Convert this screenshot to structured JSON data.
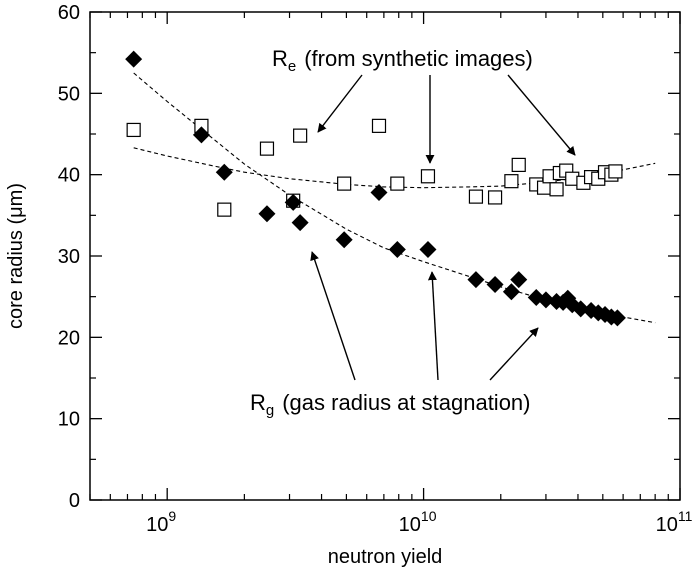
{
  "chart_data": {
    "type": "scatter",
    "xlabel": "neutron yield",
    "ylabel": "core radius   (μm)",
    "xscale": "log",
    "xlim": [
      500000000.0,
      100000000000.0
    ],
    "ylim": [
      0,
      60
    ],
    "x_tick_labels": [
      {
        "base": "10",
        "exp": "9",
        "value": 1000000000.0
      },
      {
        "base": "10",
        "exp": "10",
        "value": 10000000000.0
      },
      {
        "base": "10",
        "exp": "11",
        "value": 100000000000.0
      }
    ],
    "y_ticks": [
      0,
      10,
      20,
      30,
      40,
      50,
      60
    ],
    "grid": false,
    "legend": "none",
    "series": [
      {
        "name": "Re",
        "marker": "open-square",
        "x": [
          740000000.0,
          1360000000.0,
          1670000000.0,
          2450000000.0,
          3100000000.0,
          3300000000.0,
          4900000000.0,
          6700000000.0,
          7900000000.0,
          10400000000.0,
          16000000000.0,
          19000000000.0,
          22000000000.0,
          23500000000.0,
          27500000000.0,
          29500000000.0,
          31000000000.0,
          33000000000.0,
          34000000000.0,
          36000000000.0,
          38000000000.0,
          42000000000.0,
          45000000000.0,
          48000000000.0,
          51000000000.0,
          54000000000.0,
          56000000000.0
        ],
        "y": [
          45.5,
          46.0,
          35.7,
          43.2,
          36.8,
          44.8,
          38.9,
          46.0,
          38.9,
          39.8,
          37.3,
          37.2,
          39.2,
          41.2,
          38.8,
          38.4,
          39.8,
          38.2,
          40.2,
          40.5,
          39.5,
          39.0,
          39.7,
          39.5,
          40.3,
          40.0,
          40.4
        ]
      },
      {
        "name": "Rg",
        "marker": "filled-diamond",
        "x": [
          740000000.0,
          1360000000.0,
          1670000000.0,
          2450000000.0,
          3100000000.0,
          3300000000.0,
          4900000000.0,
          6700000000.0,
          7900000000.0,
          10400000000.0,
          16000000000.0,
          19000000000.0,
          22000000000.0,
          23500000000.0,
          27500000000.0,
          30000000000.0,
          33000000000.0,
          35000000000.0,
          36500000000.0,
          38000000000.0,
          41000000000.0,
          45000000000.0,
          48000000000.0,
          51000000000.0,
          54000000000.0,
          57000000000.0
        ],
        "y": [
          54.2,
          44.9,
          40.3,
          35.2,
          36.6,
          34.1,
          32.0,
          37.8,
          30.8,
          30.8,
          27.1,
          26.5,
          25.6,
          27.1,
          24.9,
          24.6,
          24.4,
          24.3,
          24.8,
          24.0,
          23.5,
          23.3,
          23.0,
          22.8,
          22.5,
          22.4
        ]
      }
    ],
    "fits": [
      {
        "series": "Re",
        "style": "dashed",
        "x": [
          740000000.0,
          1000000000.0,
          1500000000.0,
          2000000000.0,
          3000000000.0,
          5000000000.0,
          7000000000.0,
          10000000000.0,
          15000000000.0,
          20000000000.0,
          30000000000.0,
          40000000000.0,
          50000000000.0,
          60000000000.0,
          80000000000.0
        ],
        "y": [
          43.3,
          42.3,
          41.1,
          40.3,
          39.5,
          38.8,
          38.5,
          38.4,
          38.5,
          38.6,
          39.1,
          39.6,
          40.1,
          40.6,
          41.4
        ]
      },
      {
        "series": "Rg",
        "style": "dashed",
        "x": [
          740000000.0,
          1000000000.0,
          1500000000.0,
          2000000000.0,
          3000000000.0,
          5000000000.0,
          7000000000.0,
          10000000000.0,
          15000000000.0,
          20000000000.0,
          30000000000.0,
          40000000000.0,
          50000000000.0,
          60000000000.0,
          80000000000.0
        ],
        "y": [
          52.5,
          49.0,
          44.5,
          41.3,
          37.5,
          33.3,
          31.0,
          29.3,
          27.5,
          26.2,
          24.6,
          23.6,
          23.0,
          22.5,
          21.8
        ]
      }
    ],
    "annotations": [
      {
        "id": "re",
        "base": "R",
        "sub": "e",
        "text": "(from synthetic images)"
      },
      {
        "id": "rg",
        "base": "R",
        "sub": "g",
        "text": "(gas radius at stagnation)"
      }
    ]
  }
}
